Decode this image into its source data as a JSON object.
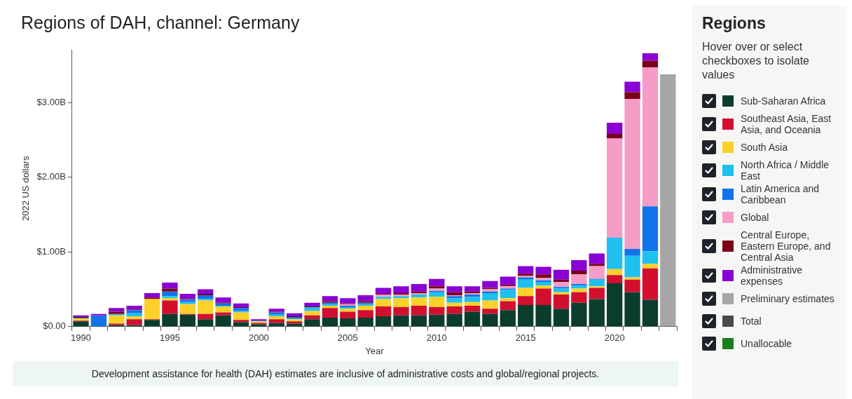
{
  "chart_data": {
    "type": "bar",
    "stacked": true,
    "title": "Regions of DAH, channel: Germany",
    "xlabel": "Year",
    "ylabel": "2022 US dollars",
    "legend_title": "Regions",
    "legend": "right",
    "grid": false,
    "annotations": [
      "Hover over or select checkboxes to isolate values",
      "Development assistance for health (DAH) estimates are inclusive of administrative costs and global/regional projects."
    ],
    "categories": [
      "1990",
      null,
      null,
      null,
      null,
      "1995",
      null,
      null,
      null,
      null,
      "2000",
      null,
      null,
      null,
      null,
      "2005",
      null,
      null,
      null,
      null,
      "2010",
      null,
      null,
      null,
      null,
      "2015",
      null,
      null,
      null,
      null,
      "2020",
      null,
      null,
      null
    ],
    "ylim": [
      0,
      3.7
    ],
    "yticks": [
      {
        "value": 0,
        "label": "$0.00"
      },
      {
        "value": 1,
        "label": "$1.00B"
      },
      {
        "value": 2,
        "label": "$2.00B"
      },
      {
        "value": 3,
        "label": "$3.00B"
      }
    ],
    "series": [
      {
        "name": "Sub-Saharan Africa",
        "color": "#0b3d2e",
        "values": [
          0.07,
          0,
          0.02,
          0.02,
          0.09,
          0.17,
          0.16,
          0.1,
          0.15,
          0.06,
          0.03,
          0.05,
          0.04,
          0.1,
          0.12,
          0.11,
          0.12,
          0.14,
          0.15,
          0.15,
          0.16,
          0.17,
          0.2,
          0.17,
          0.22,
          0.29,
          0.29,
          0.24,
          0.32,
          0.37,
          0.58,
          0.46,
          0.36,
          null
        ]
      },
      {
        "name": "Southeast Asia, East Asia, and Oceania",
        "color": "#d2102e",
        "values": [
          0.01,
          0,
          0.02,
          0.08,
          0.01,
          0.18,
          0.01,
          0.07,
          0.04,
          0.03,
          0.02,
          0.05,
          0.03,
          0.05,
          0.13,
          0.09,
          0.1,
          0.13,
          0.11,
          0.13,
          0.1,
          0.1,
          0.08,
          0.07,
          0.12,
          0.12,
          0.22,
          0.19,
          0.14,
          0.15,
          0.11,
          0.17,
          0.42,
          null
        ]
      },
      {
        "name": "South Asia",
        "color": "#fcd12a",
        "values": [
          0.03,
          0,
          0.11,
          0.04,
          0.27,
          0.03,
          0.13,
          0.18,
          0.08,
          0.1,
          0.02,
          0.04,
          0.03,
          0.06,
          0.03,
          0.04,
          0.06,
          0.1,
          0.12,
          0.11,
          0.14,
          0.05,
          0.05,
          0.11,
          0.04,
          0.11,
          0.04,
          0.03,
          0.05,
          0.02,
          0.08,
          0.03,
          0.06,
          null
        ]
      },
      {
        "name": "North Africa / Middle East",
        "color": "#1ec0f0",
        "values": [
          0,
          0,
          0.01,
          0.04,
          0,
          0.03,
          0.03,
          0.02,
          0.01,
          0.02,
          0,
          0.02,
          0.01,
          0.05,
          0.02,
          0.02,
          0.02,
          0.03,
          0.03,
          0.04,
          0.06,
          0.06,
          0.07,
          0.1,
          0.11,
          0.11,
          0.05,
          0.05,
          0.04,
          0.09,
          0.42,
          0.29,
          0.17,
          null
        ]
      },
      {
        "name": "Latin America and Caribbean",
        "color": "#1273eb",
        "values": [
          0.01,
          0.15,
          0.01,
          0.04,
          0,
          0.06,
          0.03,
          0.05,
          0.03,
          0.04,
          0.01,
          0.03,
          0.02,
          0,
          0.02,
          0.02,
          0.02,
          0,
          0,
          0,
          0.02,
          0.03,
          0.03,
          0.02,
          0.02,
          0.03,
          0.02,
          0.02,
          0.02,
          0.01,
          0,
          0.09,
          0.6,
          null
        ]
      },
      {
        "name": "Global",
        "color": "#f59dc6",
        "values": [
          0,
          0,
          0,
          0,
          0,
          0,
          0,
          0,
          0,
          0,
          0,
          0,
          0,
          0,
          0,
          0.02,
          0,
          0.03,
          0.02,
          0.02,
          0.03,
          0.01,
          0.02,
          0.03,
          0.03,
          0.02,
          0.03,
          0.07,
          0.13,
          0.17,
          1.33,
          2.01,
          1.86,
          null
        ]
      },
      {
        "name": "Central Europe, Eastern Europe, and Central Asia",
        "color": "#7a0019",
        "values": [
          0.01,
          0,
          0.03,
          0.01,
          0.02,
          0.04,
          0.01,
          0.02,
          0.01,
          0.01,
          0,
          0.01,
          0.01,
          0.01,
          0.02,
          0.01,
          0.02,
          0.01,
          0.02,
          0.02,
          0.03,
          0.04,
          0.02,
          0.02,
          0.02,
          0.03,
          0.05,
          0.03,
          0.05,
          0.03,
          0.06,
          0.09,
          0.09,
          null
        ]
      },
      {
        "name": "Administrative expenses",
        "color": "#8a00d4",
        "values": [
          0.02,
          0.02,
          0.05,
          0.05,
          0.06,
          0.08,
          0.07,
          0.06,
          0.07,
          0.05,
          0.02,
          0.04,
          0.04,
          0.05,
          0.07,
          0.07,
          0.08,
          0.08,
          0.09,
          0.1,
          0.1,
          0.08,
          0.07,
          0.09,
          0.11,
          0.1,
          0.1,
          0.13,
          0.14,
          0.14,
          0.15,
          0.14,
          0.1,
          null
        ]
      },
      {
        "name": "Preliminary estimates",
        "color": "#a6a6a6",
        "values": [
          null,
          null,
          null,
          null,
          null,
          null,
          null,
          null,
          null,
          null,
          null,
          null,
          null,
          null,
          null,
          null,
          null,
          null,
          null,
          null,
          null,
          null,
          null,
          null,
          null,
          null,
          null,
          null,
          null,
          null,
          null,
          null,
          null,
          3.38
        ]
      },
      {
        "name": "Total",
        "color": "#4a4a4a",
        "values": [
          null,
          null,
          null,
          null,
          null,
          null,
          null,
          null,
          null,
          null,
          null,
          null,
          null,
          null,
          null,
          null,
          null,
          null,
          null,
          null,
          null,
          null,
          null,
          null,
          null,
          null,
          null,
          null,
          null,
          null,
          null,
          null,
          null,
          null
        ]
      },
      {
        "name": "Unallocable",
        "color": "#1a7f1a",
        "values": [
          null,
          null,
          null,
          null,
          null,
          null,
          null,
          null,
          null,
          null,
          null,
          null,
          null,
          null,
          null,
          null,
          null,
          null,
          null,
          null,
          null,
          null,
          null,
          null,
          null,
          null,
          null,
          null,
          null,
          null,
          null,
          null,
          null,
          null
        ]
      }
    ]
  }
}
